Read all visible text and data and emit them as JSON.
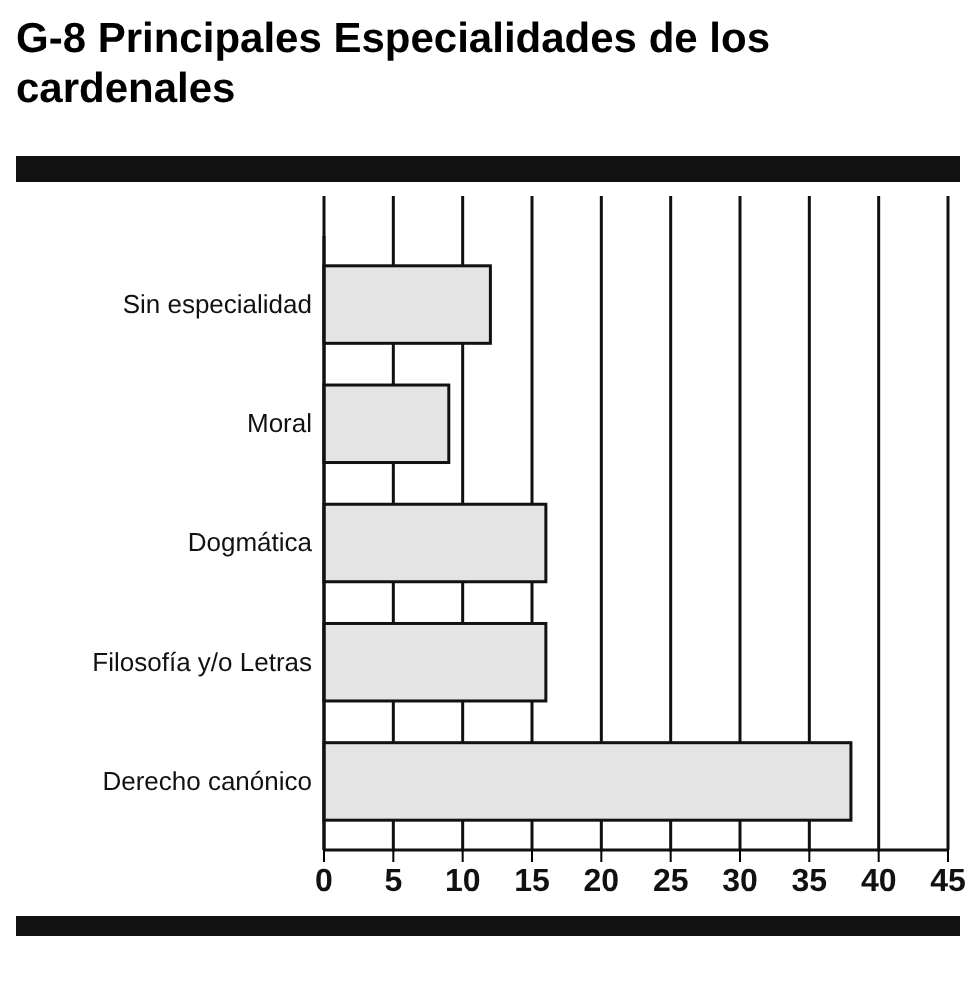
{
  "chart_data": {
    "type": "bar",
    "orientation": "horizontal",
    "title": "G-8 Principales Especialidades de los cardenales",
    "categories": [
      "Sin especialidad",
      "Moral",
      "Dogmática",
      "Filosofía y/o Letras",
      "Derecho canónico"
    ],
    "values": [
      12,
      9,
      16,
      16,
      38
    ],
    "color": "#e4e4e4",
    "xlim": [
      0,
      45
    ],
    "xticks": [
      0,
      5,
      10,
      15,
      20,
      25,
      30,
      35,
      40,
      45
    ],
    "grid": "x"
  }
}
